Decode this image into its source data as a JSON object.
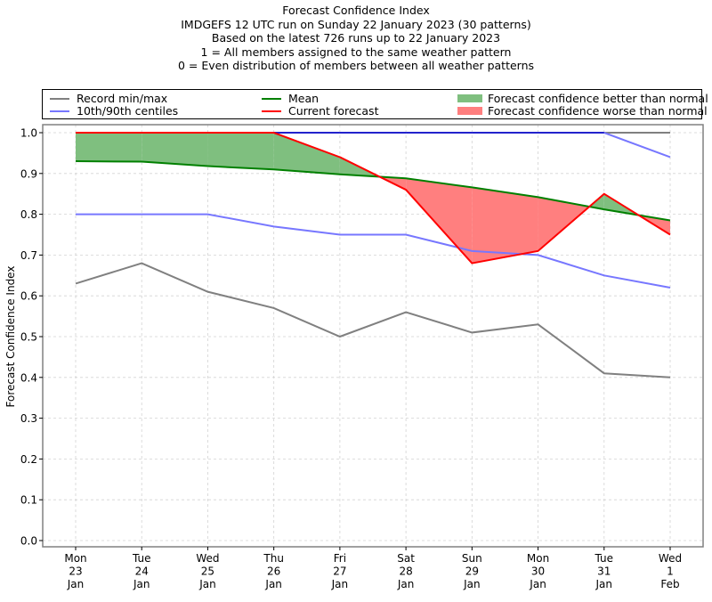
{
  "title_lines": [
    "Forecast Confidence Index",
    "IMDGEFS 12 UTC run on Sunday 22 January 2023 (30 patterns)",
    "Based on the latest 726 runs up to 22 January 2023",
    "1 = All members assigned to the same weather pattern",
    "0 = Even distribution of members between all weather patterns"
  ],
  "legend": {
    "record": "Record min/max",
    "centiles": "10th/90th centiles",
    "mean": "Mean",
    "current": "Current forecast",
    "better": "Forecast confidence better than normal",
    "worse": "Forecast confidence worse than normal"
  },
  "colors": {
    "record": "#808080",
    "centiles": "#7777ff",
    "centile_max_overlap": "#2222cc",
    "mean": "#008000",
    "current": "#ff0000",
    "better_fill": "#7fbf7f",
    "worse_fill": "#ff7f7f",
    "grid": "#d3d3d3",
    "axis": "#808080"
  },
  "chart_data": {
    "type": "line",
    "title": "Forecast Confidence Index",
    "xlabel": "",
    "ylabel": "Forecast Confidence Index",
    "ylim": [
      0.0,
      1.0
    ],
    "yticks": [
      "0.0",
      "0.1",
      "0.2",
      "0.3",
      "0.4",
      "0.5",
      "0.6",
      "0.7",
      "0.8",
      "0.9",
      "1.0"
    ],
    "grid": true,
    "legend_position": "top (above plot)",
    "categories": [
      [
        "Mon",
        "23",
        "Jan"
      ],
      [
        "Tue",
        "24",
        "Jan"
      ],
      [
        "Wed",
        "25",
        "Jan"
      ],
      [
        "Thu",
        "26",
        "Jan"
      ],
      [
        "Fri",
        "27",
        "Jan"
      ],
      [
        "Sat",
        "28",
        "Jan"
      ],
      [
        "Sun",
        "29",
        "Jan"
      ],
      [
        "Mon",
        "30",
        "Jan"
      ],
      [
        "Tue",
        "31",
        "Jan"
      ],
      [
        "Wed",
        "1",
        "Feb"
      ]
    ],
    "series": [
      {
        "name": "Record max",
        "values": [
          1.0,
          1.0,
          1.0,
          1.0,
          1.0,
          1.0,
          1.0,
          1.0,
          1.0,
          1.0
        ]
      },
      {
        "name": "Record min",
        "values": [
          0.63,
          0.68,
          0.61,
          0.57,
          0.5,
          0.56,
          0.51,
          0.53,
          0.41,
          0.4
        ]
      },
      {
        "name": "90th centile",
        "values": [
          1.0,
          1.0,
          1.0,
          1.0,
          1.0,
          1.0,
          1.0,
          1.0,
          1.0,
          0.94
        ]
      },
      {
        "name": "10th centile",
        "values": [
          0.8,
          0.8,
          0.8,
          0.77,
          0.75,
          0.75,
          0.71,
          0.7,
          0.65,
          0.62
        ]
      },
      {
        "name": "Mean",
        "values": [
          0.93,
          0.929,
          0.918,
          0.91,
          0.898,
          0.888,
          0.866,
          0.842,
          0.812,
          0.785
        ]
      },
      {
        "name": "Current forecast",
        "values": [
          1.0,
          1.0,
          1.0,
          1.0,
          0.94,
          0.86,
          0.68,
          0.71,
          0.85,
          0.75
        ]
      }
    ]
  }
}
